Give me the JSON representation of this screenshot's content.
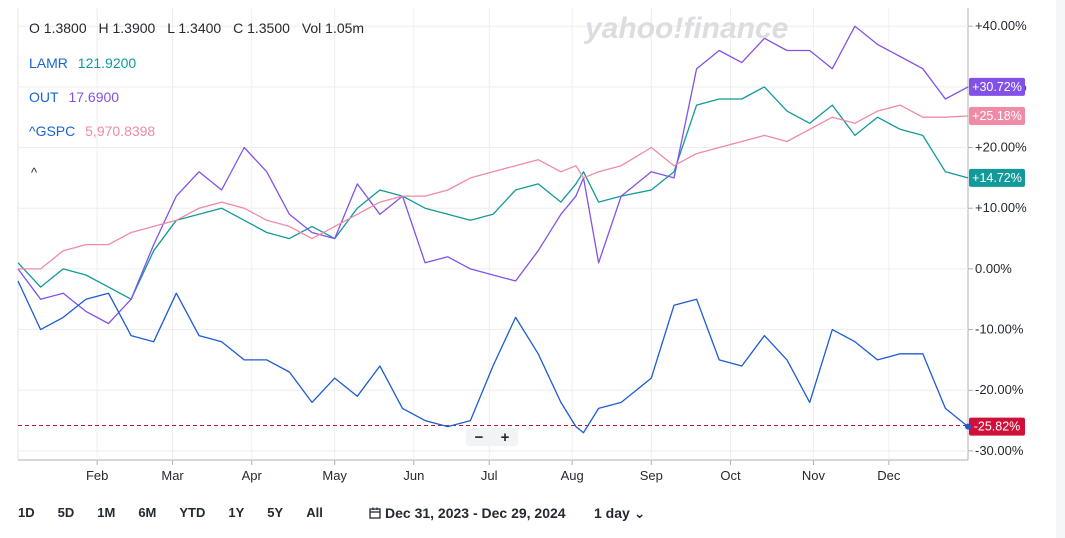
{
  "ohlc": {
    "open": "O 1.3800",
    "high": "H 1.3900",
    "low": "L 1.3400",
    "close": "C 1.3500",
    "vol": "Vol 1.05m"
  },
  "legend": [
    {
      "symbol": "LAMR",
      "value": "121.9200",
      "color": "#12999a",
      "symbol_color": "#1a63d6"
    },
    {
      "symbol": "OUT",
      "value": "17.6900",
      "color": "#8252e8",
      "symbol_color": "#1a63d6"
    },
    {
      "symbol": "^GSPC",
      "value": "5,970.8398",
      "color": "#f08aa5",
      "symbol_color": "#1a63d6"
    }
  ],
  "collapse_icon": "^",
  "watermark": "yahoo!finance",
  "zoom": {
    "minus": "−",
    "plus": "+"
  },
  "ranges": [
    "1D",
    "5D",
    "1M",
    "6M",
    "YTD",
    "1Y",
    "5Y",
    "All"
  ],
  "date_range": "Dec 31, 2023 - Dec 29, 2024",
  "interval": "1 day ⌄",
  "chart_data": {
    "type": "line",
    "y_axis_labels": [
      "+40.00%",
      "+30.00%",
      "+20.00%",
      "+10.00%",
      "0.00%",
      "-10.00%",
      "-20.00%",
      "-30.00%"
    ],
    "y_ticks": [
      40,
      30,
      20,
      10,
      0,
      -10,
      -20,
      -30
    ],
    "ylim": [
      -31.5,
      43
    ],
    "xlim": [
      0,
      252
    ],
    "month_labels": [
      "Feb",
      "Mar",
      "Apr",
      "May",
      "Jun",
      "Jul",
      "Aug",
      "Sep",
      "Oct",
      "Nov",
      "Dec"
    ],
    "month_x": [
      21,
      41,
      62,
      84,
      105,
      125,
      147,
      168,
      189,
      211,
      231
    ],
    "reference_line": -25.82,
    "series": [
      {
        "name": "LAMR",
        "color": "#12999a",
        "last_label": "+14.72%",
        "x": [
          0,
          6,
          12,
          18,
          24,
          30,
          36,
          42,
          48,
          54,
          60,
          66,
          72,
          78,
          84,
          90,
          96,
          102,
          108,
          114,
          120,
          126,
          132,
          138,
          144,
          148,
          150,
          154,
          160,
          168,
          174,
          180,
          186,
          192,
          198,
          204,
          210,
          216,
          222,
          228,
          234,
          240,
          246,
          252
        ],
        "y": [
          1,
          -3,
          0,
          -1,
          -3,
          -5,
          3,
          8,
          9,
          10,
          8,
          6,
          5,
          7,
          5,
          10,
          13,
          12,
          10,
          9,
          8,
          9,
          13,
          14,
          11,
          14,
          16,
          11,
          12,
          13,
          16,
          27,
          28,
          28,
          30,
          26,
          24,
          27,
          22,
          25,
          23,
          22,
          16,
          15
        ]
      },
      {
        "name": "OUT",
        "color": "#8252e8",
        "last_label": "+30.72%",
        "x": [
          0,
          6,
          12,
          18,
          24,
          30,
          36,
          42,
          48,
          54,
          60,
          66,
          72,
          78,
          84,
          90,
          96,
          102,
          108,
          114,
          120,
          126,
          132,
          138,
          144,
          148,
          150,
          154,
          160,
          168,
          174,
          180,
          186,
          192,
          198,
          204,
          210,
          216,
          222,
          228,
          234,
          240,
          246,
          252
        ],
        "y": [
          0,
          -5,
          -4,
          -7,
          -9,
          -5,
          4,
          12,
          16,
          13,
          20,
          16,
          9,
          6,
          5,
          14,
          9,
          12,
          1,
          2,
          0,
          -1,
          -2,
          3,
          9,
          12,
          15,
          1,
          12,
          16,
          15,
          33,
          36,
          34,
          38,
          36,
          36,
          33,
          40,
          37,
          35,
          33,
          28,
          30
        ]
      },
      {
        "name": "^GSPC",
        "color": "#f08aa5",
        "last_label": "+25.18%",
        "x": [
          0,
          6,
          12,
          18,
          24,
          30,
          36,
          42,
          48,
          54,
          60,
          66,
          72,
          78,
          84,
          90,
          96,
          102,
          108,
          114,
          120,
          126,
          132,
          138,
          144,
          148,
          150,
          154,
          160,
          168,
          174,
          180,
          186,
          192,
          198,
          204,
          210,
          216,
          222,
          228,
          234,
          240,
          246,
          252
        ],
        "y": [
          0,
          0,
          3,
          4,
          4,
          6,
          7,
          8,
          10,
          11,
          10,
          8,
          7,
          5,
          7,
          9,
          11,
          12,
          12,
          13,
          15,
          16,
          17,
          18,
          16,
          17,
          15,
          16,
          17,
          20,
          17,
          19,
          20,
          21,
          22,
          21,
          23,
          25,
          24,
          26,
          27,
          25,
          25,
          25.2
        ]
      },
      {
        "name": "LAMR",
        "color": "#1d5bd4",
        "last_label": "-25.82%",
        "x": [
          0,
          6,
          12,
          18,
          24,
          30,
          36,
          42,
          48,
          54,
          60,
          66,
          72,
          78,
          84,
          90,
          96,
          102,
          108,
          114,
          120,
          126,
          132,
          138,
          144,
          148,
          150,
          154,
          160,
          168,
          174,
          180,
          186,
          192,
          198,
          204,
          210,
          216,
          222,
          228,
          234,
          240,
          246,
          252
        ],
        "y": [
          -2,
          -10,
          -8,
          -5,
          -4,
          -11,
          -12,
          -4,
          -11,
          -12,
          -15,
          -15,
          -17,
          -22,
          -18,
          -21,
          -16,
          -23,
          -25,
          -26,
          -25,
          -16,
          -8,
          -14,
          -22,
          -26,
          -27,
          -23,
          -22,
          -18,
          -6,
          -5,
          -15,
          -16,
          -11,
          -15,
          -22,
          -10,
          -12,
          -15,
          -14,
          -14,
          -23,
          -26
        ]
      }
    ]
  }
}
